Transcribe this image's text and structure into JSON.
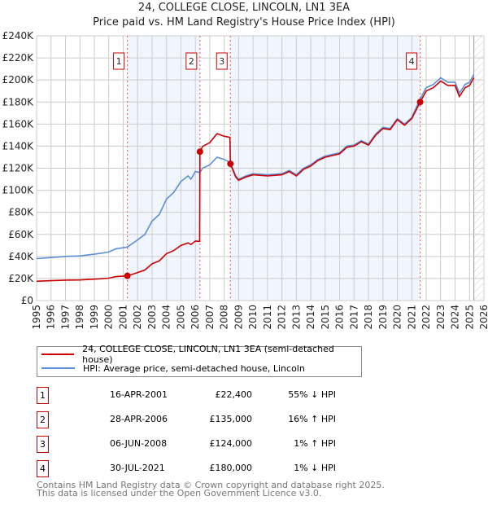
{
  "chart_data": {
    "type": "line",
    "title": "24, COLLEGE CLOSE, LINCOLN, LN1 3EA",
    "subtitle": "Price paid vs. HM Land Registry's House Price Index (HPI)",
    "xlim": [
      1995,
      2026
    ],
    "ylim": [
      0,
      240000
    ],
    "y_ticks": [
      0,
      20000,
      40000,
      60000,
      80000,
      100000,
      120000,
      140000,
      160000,
      180000,
      200000,
      220000,
      240000
    ],
    "y_tick_labels": [
      "£0",
      "£20K",
      "£40K",
      "£60K",
      "£80K",
      "£100K",
      "£120K",
      "£140K",
      "£160K",
      "£180K",
      "£200K",
      "£220K",
      "£240K"
    ],
    "x_ticks": [
      "1995",
      "1996",
      "1997",
      "1998",
      "1999",
      "2000",
      "2001",
      "2002",
      "2003",
      "2004",
      "2005",
      "2006",
      "2007",
      "2008",
      "2009",
      "2010",
      "2011",
      "2012",
      "2013",
      "2014",
      "2015",
      "2016",
      "2017",
      "2018",
      "2019",
      "2020",
      "2021",
      "2022",
      "2023",
      "2024",
      "2025",
      "2026"
    ],
    "grid": true,
    "series": [
      {
        "name": "24, COLLEGE CLOSE, LINCOLN, LN1 3EA (semi-detached house)",
        "color": "#cc0000",
        "x": [
          1995,
          1996,
          1997,
          1998,
          1999,
          2000,
          2000.5,
          2001.29,
          2002,
          2002.5,
          2003,
          2003.5,
          2004,
          2004.5,
          2005,
          2005.5,
          2005.7,
          2006,
          2006.3,
          2006.32,
          2006.5,
          2007,
          2007.5,
          2008,
          2008.4,
          2008.43,
          2008.8,
          2009,
          2009.5,
          2010,
          2011,
          2012,
          2012.5,
          2013,
          2013.5,
          2014,
          2014.5,
          2015,
          2016,
          2016.5,
          2017,
          2017.5,
          2018,
          2018.5,
          2019,
          2019.5,
          2020,
          2020.5,
          2021,
          2021.58,
          2022,
          2022.5,
          2023,
          2023.5,
          2024,
          2024.3,
          2024.7,
          2025,
          2025.3
        ],
        "y": [
          17500,
          18000,
          18500,
          18700,
          19400,
          20300,
          21700,
          22400,
          25400,
          27700,
          33300,
          36000,
          42500,
          45300,
          49900,
          52200,
          50800,
          54000,
          53600,
          135000,
          139700,
          143200,
          151300,
          149000,
          148000,
          124000,
          112000,
          109000,
          112000,
          114000,
          113000,
          114000,
          117000,
          113000,
          119000,
          122000,
          127000,
          130000,
          133000,
          139000,
          140000,
          144000,
          141000,
          150000,
          156000,
          155000,
          164000,
          159000,
          165000,
          180000,
          190000,
          193000,
          199000,
          195000,
          195000,
          185000,
          193000,
          195000,
          202000
        ]
      },
      {
        "name": "HPI: Average price, semi-detached house, Lincoln",
        "color": "#5b8fd6",
        "x": [
          1995,
          1996,
          1997,
          1998,
          1999,
          2000,
          2000.5,
          2001.29,
          2002,
          2002.5,
          2003,
          2003.5,
          2004,
          2004.5,
          2005,
          2005.5,
          2005.7,
          2006,
          2006.32,
          2006.5,
          2007,
          2007.5,
          2008,
          2008.43,
          2008.8,
          2009,
          2009.5,
          2010,
          2011,
          2012,
          2012.5,
          2013,
          2013.5,
          2014,
          2014.5,
          2015,
          2016,
          2016.5,
          2017,
          2017.5,
          2018,
          2018.5,
          2019,
          2019.5,
          2020,
          2020.5,
          2021,
          2021.58,
          2022,
          2022.5,
          2023,
          2023.5,
          2024,
          2024.3,
          2024.7,
          2025,
          2025.3
        ],
        "y": [
          38000,
          39000,
          40000,
          40500,
          42000,
          44000,
          47000,
          48500,
          55000,
          60000,
          72000,
          78000,
          92000,
          98000,
          108000,
          113000,
          110000,
          117000,
          116000,
          120000,
          123000,
          130000,
          128000,
          125000,
          113000,
          110000,
          113000,
          115000,
          114000,
          115000,
          118000,
          114000,
          120000,
          123000,
          128000,
          131000,
          134000,
          140000,
          141000,
          145000,
          142000,
          151000,
          157000,
          156000,
          165000,
          160000,
          166000,
          183000,
          193000,
          196000,
          202000,
          198000,
          198000,
          188000,
          196000,
          198000,
          205000
        ]
      }
    ],
    "sales": [
      {
        "label": "1",
        "x": 2001.29,
        "price": 22400,
        "date": "16-APR-2001",
        "price_text": "£22,400",
        "hpi_text": "55% ↓ HPI"
      },
      {
        "label": "2",
        "x": 2006.32,
        "price": 135000,
        "date": "28-APR-2006",
        "price_text": "£135,000",
        "hpi_text": "16% ↑ HPI"
      },
      {
        "label": "3",
        "x": 2008.43,
        "price": 124000,
        "date": "06-JUN-2008",
        "price_text": "£124,000",
        "hpi_text": "1% ↑ HPI"
      },
      {
        "label": "4",
        "x": 2021.58,
        "price": 180000,
        "date": "30-JUL-2021",
        "price_text": "£180,000",
        "hpi_text": "1% ↓ HPI"
      }
    ],
    "shaded_ranges": [
      [
        2001.29,
        2006.32
      ],
      [
        2008.43,
        2021.58
      ]
    ],
    "forecast_from": 2025.3,
    "legend_position": "below"
  },
  "footer": {
    "line1": "Contains HM Land Registry data © Crown copyright and database right 2025.",
    "line2": "This data is licensed under the Open Government Licence v3.0."
  }
}
